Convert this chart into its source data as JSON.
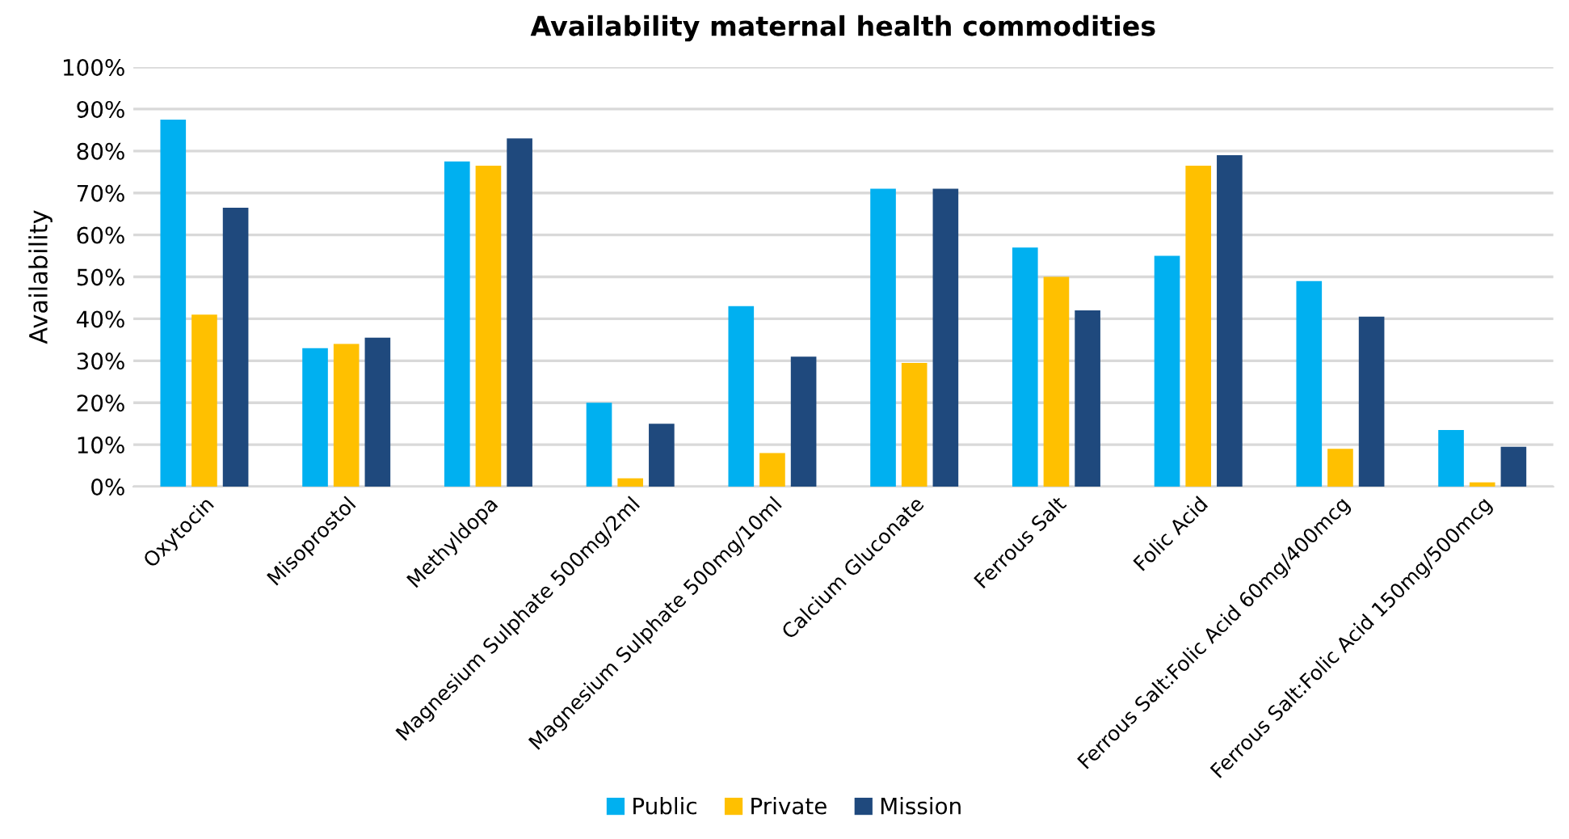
{
  "chart_data": {
    "type": "bar",
    "title": "Availability maternal health commodities",
    "ylabel": "Availability",
    "categories": [
      "Oxytocin",
      "Misoprostol",
      "Methyldopa",
      "Magnesium Sulphate 500mg/2ml",
      "Magnesium Sulphate 500mg/10ml",
      "Calcium Gluconate",
      "Ferrous Salt",
      "Folic Acid",
      "Ferrous Salt:Folic Acid 60mg/400mcg",
      "Ferrous Salt:Folic Acid 150mg/500mcg"
    ],
    "series": [
      {
        "name": "Public",
        "color": "#00b0f0",
        "values": [
          87.5,
          33,
          77.5,
          20,
          43,
          71,
          57,
          55,
          49,
          13.5
        ]
      },
      {
        "name": "Private",
        "color": "#ffc000",
        "values": [
          41,
          34,
          76.5,
          2,
          8,
          29.5,
          50,
          76.5,
          9,
          1
        ]
      },
      {
        "name": "Mission",
        "color": "#1f497d",
        "values": [
          66.5,
          35.5,
          83,
          15,
          31,
          71,
          42,
          79,
          40.5,
          9.5
        ]
      }
    ],
    "ylim": [
      0,
      100
    ],
    "yticks": [
      {
        "value": 0,
        "label": "0%"
      },
      {
        "value": 10,
        "label": "10%"
      },
      {
        "value": 20,
        "label": "20%"
      },
      {
        "value": 30,
        "label": "30%"
      },
      {
        "value": 40,
        "label": "40%"
      },
      {
        "value": 50,
        "label": "50%"
      },
      {
        "value": 60,
        "label": "60%"
      },
      {
        "value": 70,
        "label": "70%"
      },
      {
        "value": 80,
        "label": "80%"
      },
      {
        "value": 90,
        "label": "90%"
      },
      {
        "value": 100,
        "label": "100%"
      }
    ],
    "grid": "y",
    "legend": "bottom"
  }
}
